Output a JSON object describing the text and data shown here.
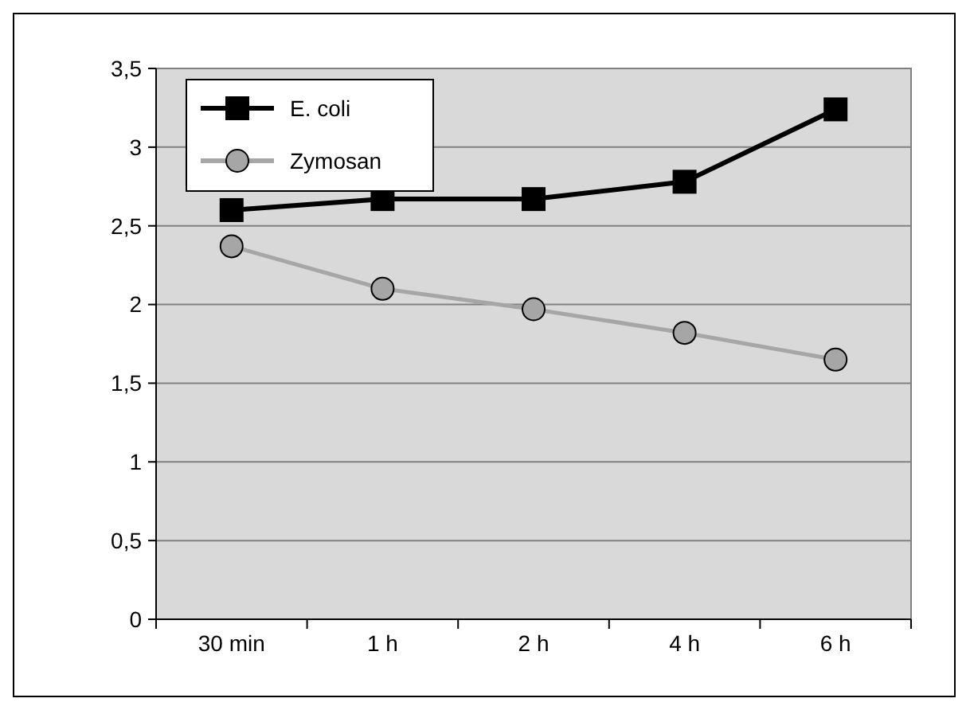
{
  "chart_data": {
    "type": "line",
    "categories": [
      "30 min",
      "1 h",
      "2 h",
      "4 h",
      "6 h"
    ],
    "series": [
      {
        "name": "E. coli",
        "color": "#000000",
        "marker": "square",
        "values": [
          2.6,
          2.67,
          2.67,
          2.78,
          3.24
        ]
      },
      {
        "name": "Zymosan",
        "color": "#a6a6a6",
        "marker": "circle",
        "values": [
          2.37,
          2.1,
          1.97,
          1.82,
          1.65
        ]
      }
    ],
    "ylim": [
      0,
      3.5
    ],
    "yticks": [
      0,
      {
        "value": 0.5,
        "label": "0,5"
      },
      1,
      {
        "value": 1.5,
        "label": "1,5"
      },
      2,
      {
        "value": 2.5,
        "label": "2,5"
      },
      3,
      {
        "value": 3.5,
        "label": "3,5"
      }
    ],
    "grid": "y",
    "legend": "top left"
  }
}
